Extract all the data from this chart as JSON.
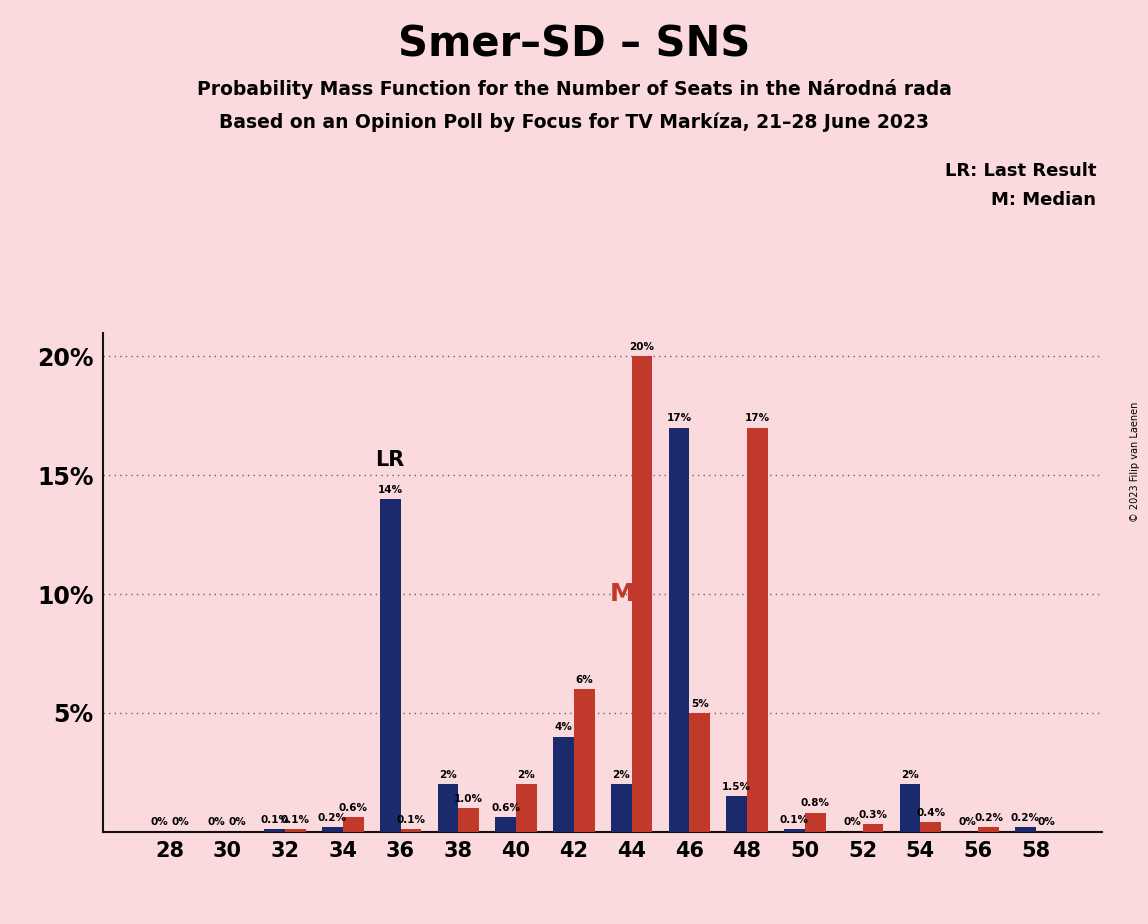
{
  "title": "Smer–SD – SNS",
  "subtitle1": "Probability Mass Function for the Number of Seats in the Národná rada",
  "subtitle2": "Based on an Opinion Poll by Focus for TV Markíza, 21–28 June 2023",
  "copyright": "© 2023 Filip van Laenen",
  "seats": [
    28,
    30,
    32,
    34,
    36,
    38,
    40,
    42,
    44,
    46,
    48,
    50,
    52,
    54,
    56,
    58
  ],
  "blue_values": [
    0.0,
    0.0,
    0.1,
    0.2,
    14.0,
    2.0,
    0.6,
    4.0,
    2.0,
    17.0,
    1.5,
    0.1,
    0.0,
    2.0,
    0.0,
    0.2
  ],
  "red_values": [
    0.0,
    0.0,
    0.1,
    0.6,
    0.1,
    1.0,
    2.0,
    6.0,
    20.0,
    5.0,
    17.0,
    0.8,
    0.3,
    0.4,
    0.2,
    0.0
  ],
  "blue_labels": [
    "0%",
    "0%",
    "0.1%",
    "0.2%",
    "14%",
    "2%",
    "0.6%",
    "4%",
    "2%",
    "17%",
    "1.5%",
    "0.1%",
    "0%",
    "2%",
    "0%",
    "0.2%"
  ],
  "red_labels": [
    "0%",
    "0%",
    "0.1%",
    "0.6%",
    "0.1%",
    "1.0%",
    "2%",
    "6%",
    "20%",
    "5%",
    "17%",
    "0.8%",
    "0.3%",
    "0.4%",
    "0.2%",
    "0%"
  ],
  "blue_color": "#1a2a6c",
  "red_color": "#c0392b",
  "bg_color": "#fadadd",
  "median_seat": 44,
  "lr_seat": 36,
  "ylim": [
    0,
    21
  ],
  "yticks": [
    0,
    5,
    10,
    15,
    20
  ],
  "ytick_labels": [
    "",
    "5%",
    "10%",
    "15%",
    "20%"
  ],
  "legend_lr": "LR: Last Result",
  "legend_m": "M: Median"
}
